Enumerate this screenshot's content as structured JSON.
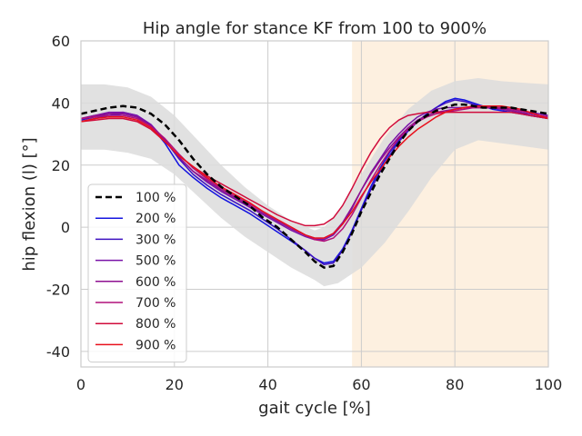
{
  "chart_data": {
    "type": "line",
    "title": "Hip angle for stance KF from 100 to 900%",
    "xlabel": "gait cycle [%]",
    "ylabel": "hip flexion (l) [°]",
    "xlim": [
      0,
      100
    ],
    "ylim": [
      -45,
      60
    ],
    "xticks": [
      0,
      20,
      40,
      60,
      80,
      100
    ],
    "yticks": [
      -40,
      -20,
      0,
      20,
      40,
      60
    ],
    "grid": true,
    "legend_position": "lower-left",
    "band": {
      "color": "#dcdcdc",
      "x": [
        0,
        5,
        10,
        15,
        20,
        25,
        30,
        35,
        40,
        45,
        50,
        52,
        55,
        60,
        65,
        70,
        75,
        80,
        85,
        90,
        95,
        100
      ],
      "upper": [
        46,
        46,
        45,
        42,
        36,
        28,
        20,
        13,
        7,
        2,
        -1,
        0,
        5,
        17,
        29,
        38,
        44,
        47,
        48,
        47,
        46.5,
        46
      ],
      "lower": [
        25,
        25,
        24,
        22,
        17,
        10,
        3,
        -3,
        -8,
        -13,
        -17,
        -19,
        -18,
        -13,
        -5,
        5,
        16,
        25,
        28,
        27,
        26,
        25
      ]
    },
    "shaded_region": {
      "x": [
        58,
        100
      ],
      "color": "#fdf0e0"
    },
    "series": [
      {
        "name": "100 %",
        "color": "#000000",
        "dashed": true,
        "x": [
          0,
          3,
          6,
          9,
          12,
          15,
          18,
          21,
          24,
          27,
          30,
          33,
          36,
          39,
          42,
          45,
          48,
          50,
          52,
          54,
          56,
          58,
          60,
          62,
          64,
          66,
          68,
          70,
          72,
          74,
          76,
          78,
          80,
          82,
          84,
          86,
          88,
          90,
          92,
          94,
          96,
          98,
          100
        ],
        "y": [
          36.5,
          37.5,
          38.5,
          39,
          38.5,
          36.5,
          33,
          28,
          22,
          17,
          13,
          10,
          7,
          3,
          0,
          -4,
          -8,
          -11,
          -13,
          -12.5,
          -8,
          -2,
          5,
          11,
          17,
          22,
          27,
          31,
          34,
          36,
          37.5,
          38.5,
          39.5,
          39.5,
          39,
          38.5,
          38.5,
          38.5,
          38.5,
          38,
          37.5,
          37,
          36.5
        ]
      },
      {
        "name": "200 %",
        "color": "#1414e0",
        "dashed": false,
        "x": [
          0,
          3,
          6,
          9,
          12,
          15,
          18,
          21,
          24,
          27,
          30,
          33,
          36,
          39,
          42,
          45,
          48,
          50,
          52,
          54,
          56,
          58,
          60,
          62,
          64,
          66,
          68,
          70,
          72,
          74,
          76,
          78,
          80,
          82,
          84,
          86,
          88,
          90,
          92,
          94,
          96,
          98,
          100
        ],
        "y": [
          34,
          35,
          36,
          36.5,
          35.5,
          32.5,
          27,
          20,
          16,
          12.5,
          9.5,
          7,
          4.5,
          1.5,
          -1.5,
          -4.5,
          -7.5,
          -10,
          -11.5,
          -11,
          -7,
          -1,
          6,
          13,
          19,
          24,
          28,
          31,
          34,
          36.5,
          38.5,
          40.5,
          41.5,
          41,
          40,
          39,
          38,
          37.5,
          37,
          36.5,
          36,
          35.5,
          35
        ]
      },
      {
        "name": "300 %",
        "color": "#3d10c0",
        "dashed": false,
        "x": [
          0,
          3,
          6,
          9,
          12,
          15,
          18,
          21,
          24,
          27,
          30,
          33,
          36,
          39,
          42,
          45,
          48,
          50,
          52,
          54,
          56,
          58,
          60,
          62,
          64,
          66,
          68,
          70,
          72,
          74,
          76,
          78,
          80,
          82,
          84,
          86,
          88,
          90,
          92,
          94,
          96,
          98,
          100
        ],
        "y": [
          34.5,
          35.5,
          36.5,
          37,
          36,
          33,
          28,
          22,
          17,
          13.5,
          10.5,
          8,
          5.5,
          2.5,
          -0.5,
          -4,
          -7.5,
          -10,
          -12,
          -11.5,
          -7.5,
          -1.5,
          5.5,
          12,
          18,
          23,
          27.5,
          31,
          34,
          36.5,
          38.5,
          40,
          41,
          40.5,
          39.5,
          39,
          38.5,
          38,
          37.5,
          37,
          36,
          35.5,
          35
        ]
      },
      {
        "name": "500 %",
        "color": "#7a12a8",
        "dashed": false,
        "x": [
          0,
          3,
          6,
          9,
          12,
          15,
          18,
          21,
          24,
          27,
          30,
          33,
          36,
          39,
          42,
          45,
          48,
          50,
          52,
          54,
          56,
          58,
          60,
          62,
          64,
          66,
          68,
          70,
          72,
          74,
          76,
          78,
          80,
          82,
          84,
          86,
          88,
          90,
          92,
          94,
          96,
          98,
          100
        ],
        "y": [
          35,
          36,
          37,
          37,
          36,
          33,
          28,
          22.5,
          18,
          14.5,
          11.5,
          9,
          6.5,
          4,
          1.5,
          -1,
          -3,
          -4,
          -4,
          -2.5,
          1,
          6,
          12,
          17.5,
          22,
          26.5,
          30,
          33,
          35.5,
          37,
          38,
          38.5,
          38.5,
          38.5,
          38.5,
          38.5,
          38.5,
          38.5,
          38,
          37.5,
          37,
          36.5,
          36
        ]
      },
      {
        "name": "600 %",
        "color": "#8e0f90",
        "dashed": false,
        "x": [
          0,
          3,
          6,
          9,
          12,
          15,
          18,
          21,
          24,
          27,
          30,
          33,
          36,
          39,
          42,
          45,
          48,
          50,
          52,
          54,
          56,
          58,
          60,
          62,
          64,
          66,
          68,
          70,
          72,
          74,
          76,
          78,
          80,
          82,
          84,
          86,
          88,
          90,
          92,
          94,
          96,
          98,
          100
        ],
        "y": [
          35,
          36,
          36.5,
          36.5,
          35.5,
          32.5,
          28,
          22.5,
          18,
          15,
          12,
          9.5,
          7,
          4.5,
          2,
          -0.5,
          -2.5,
          -3.5,
          -3.5,
          -2,
          1.5,
          6.5,
          12,
          17,
          21.5,
          25.5,
          29,
          32,
          34.5,
          36,
          37,
          37.5,
          38,
          38.5,
          38.5,
          38.5,
          38.5,
          38,
          37.5,
          37,
          36.5,
          36,
          35.5
        ]
      },
      {
        "name": "700 %",
        "color": "#b0107a",
        "dashed": false,
        "x": [
          0,
          3,
          6,
          9,
          12,
          15,
          18,
          21,
          24,
          27,
          30,
          33,
          36,
          39,
          42,
          45,
          48,
          50,
          52,
          54,
          56,
          58,
          60,
          62,
          64,
          66,
          68,
          70,
          72,
          74,
          76,
          78,
          80,
          82,
          84,
          86,
          88,
          90,
          92,
          94,
          96,
          98,
          100
        ],
        "y": [
          35,
          35.5,
          36,
          36,
          35,
          32.5,
          28.5,
          23.5,
          19,
          15.5,
          12.5,
          10,
          7.5,
          5,
          2.5,
          0,
          -2.5,
          -4,
          -4.5,
          -3.5,
          -0.5,
          4,
          9.5,
          15,
          20,
          24.5,
          28.5,
          31.5,
          34,
          35.5,
          36.5,
          37,
          37.5,
          38,
          38.5,
          38.5,
          38.5,
          38.5,
          38,
          37.5,
          37,
          36,
          35.5
        ]
      },
      {
        "name": "800 %",
        "color": "#d00c3c",
        "dashed": false,
        "x": [
          0,
          3,
          6,
          9,
          12,
          15,
          18,
          21,
          24,
          27,
          30,
          33,
          36,
          39,
          42,
          45,
          48,
          50,
          52,
          54,
          56,
          58,
          60,
          62,
          64,
          66,
          68,
          70,
          72,
          74,
          76,
          78,
          80,
          82,
          84,
          86,
          88,
          90,
          92,
          94,
          96,
          98,
          100
        ],
        "y": [
          34,
          34.5,
          35,
          35,
          34,
          31.5,
          27.5,
          23,
          19.5,
          16.5,
          14,
          11.5,
          9,
          6.5,
          4,
          2,
          0.5,
          0.5,
          1,
          3,
          7,
          12.5,
          18.5,
          24,
          28.5,
          32,
          34.5,
          36,
          36.5,
          37,
          37,
          37,
          37,
          37,
          37,
          37,
          37,
          37,
          37,
          36.5,
          36,
          35.5,
          35
        ]
      },
      {
        "name": "900 %",
        "color": "#e8101c",
        "dashed": false,
        "x": [
          0,
          3,
          6,
          9,
          12,
          15,
          18,
          21,
          24,
          27,
          30,
          33,
          36,
          39,
          42,
          45,
          48,
          50,
          52,
          54,
          56,
          58,
          60,
          62,
          64,
          66,
          68,
          70,
          72,
          74,
          76,
          78,
          80,
          82,
          84,
          86,
          88,
          90,
          92,
          94,
          96,
          98,
          100
        ],
        "y": [
          34,
          35,
          35.5,
          35.5,
          34.5,
          32,
          27.5,
          23,
          19.5,
          16,
          13,
          10.5,
          8,
          5,
          2.5,
          0,
          -2.5,
          -3.5,
          -3.5,
          -2,
          1,
          5,
          10,
          14.5,
          18.5,
          22.5,
          26,
          29,
          31.5,
          33.5,
          35.5,
          37,
          38,
          38.5,
          39,
          39,
          39,
          39,
          38.5,
          38,
          37,
          36,
          35
        ]
      }
    ]
  }
}
